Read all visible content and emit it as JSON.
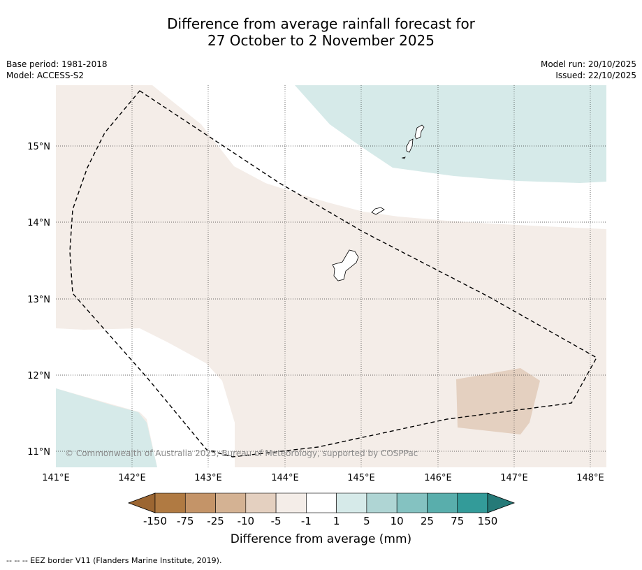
{
  "title": {
    "line1": "Difference from average rainfall forecast for",
    "line2": "27 October to 2 November 2025"
  },
  "meta": {
    "base_period": "Base period: 1981-2018",
    "model": "Model: ACCESS-S2",
    "model_run": "Model run: 20/10/2025",
    "issued": "Issued: 22/10/2025"
  },
  "map": {
    "lon_ticks": [
      "141°E",
      "142°E",
      "143°E",
      "144°E",
      "145°E",
      "146°E",
      "147°E",
      "148°E"
    ],
    "lat_ticks": [
      "15°N",
      "14°N",
      "13°N",
      "12°N",
      "11°N"
    ],
    "copyright": "© Commonwealth of Australia 2025, Bureau of Meteorology, supported by COSPPac",
    "colors": {
      "dry_light": "#f4ede8",
      "dry_medium": "#e4d0c0",
      "wet_light": "#d6eae9",
      "neutral": "#ffffff"
    }
  },
  "colorbar": {
    "labels": [
      "-150",
      "-75",
      "-25",
      "-10",
      "-5",
      "-1",
      "1",
      "5",
      "10",
      "25",
      "75",
      "150"
    ],
    "colors": [
      "#9c6632",
      "#b07a42",
      "#c49468",
      "#d4b293",
      "#e4d0c0",
      "#f4ede8",
      "#ffffff",
      "#d6eae9",
      "#afd5d4",
      "#84c2c1",
      "#59aeac",
      "#339b99",
      "#257a78"
    ],
    "title": "Difference from average (mm)"
  },
  "footer": {
    "legend": "--  --  -- EEZ border V11 (Flanders Marine Institute, 2019)."
  }
}
